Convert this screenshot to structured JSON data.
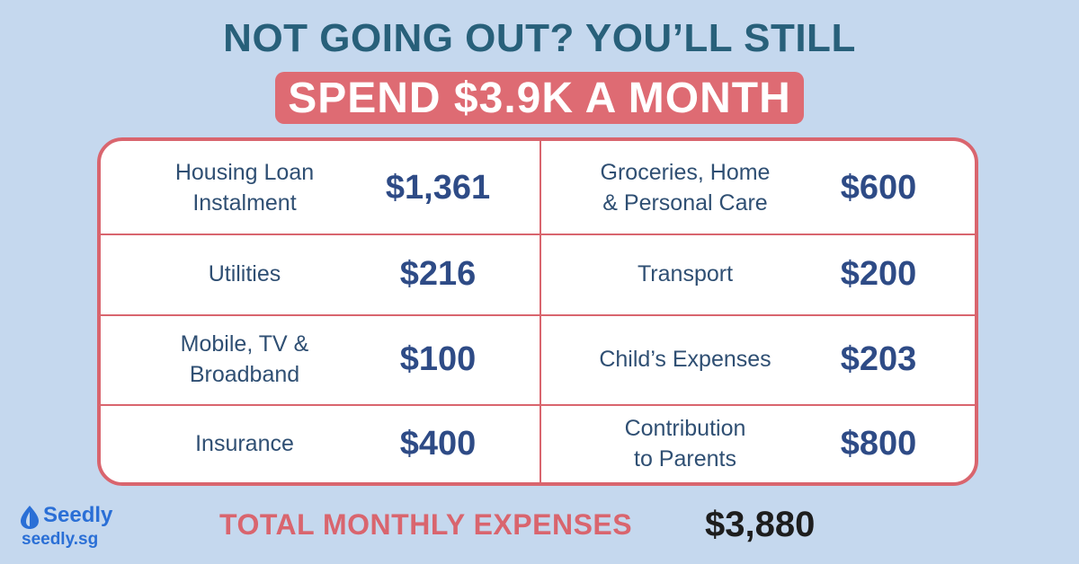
{
  "headline": "NOT GOING OUT? YOU’LL STILL",
  "subheadline": "SPEND $3.9K A MONTH",
  "colors": {
    "background": "#c5d8ee",
    "headline": "#28607a",
    "accent": "#de6b73",
    "amount": "#2e4b86",
    "brand": "#2a6fd6"
  },
  "expenses": [
    {
      "label": "Housing Loan\nInstalment",
      "amount": "$1,361"
    },
    {
      "label": "Groceries, Home\n& Personal Care",
      "amount": "$600"
    },
    {
      "label": "Utilities",
      "amount": "$216"
    },
    {
      "label": "Transport",
      "amount": "$200"
    },
    {
      "label": "Mobile, TV &\nBroadband",
      "amount": "$100"
    },
    {
      "label": "Child’s Expenses",
      "amount": "$203"
    },
    {
      "label": "Insurance",
      "amount": "$400"
    },
    {
      "label": "Contribution\nto Parents",
      "amount": "$800"
    }
  ],
  "total": {
    "label": "TOTAL MONTHLY EXPENSES",
    "value": "$3,880"
  },
  "brand": {
    "icon": "seedly-leaf-icon",
    "name": "Seedly",
    "url": "seedly.sg"
  }
}
